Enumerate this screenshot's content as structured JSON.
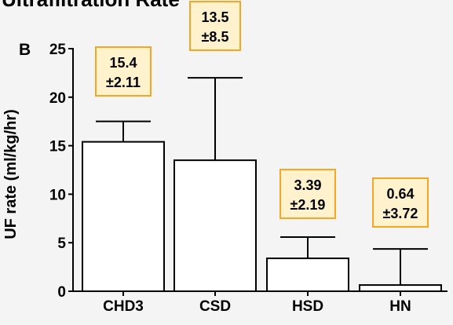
{
  "chart_data": {
    "type": "bar",
    "title": "Ultrafiltration Rate",
    "panel_label": "B",
    "ylabel": "UF rate (ml/kg/hr)",
    "xlabel": "",
    "categories": [
      "CHD3",
      "CSD",
      "HSD",
      "HN"
    ],
    "values": [
      15.4,
      13.5,
      3.39,
      0.64
    ],
    "error_upper": [
      2.11,
      8.5,
      2.19,
      3.72
    ],
    "annotations": [
      {
        "line1": "15.4",
        "line2": "±2.11"
      },
      {
        "line1": "13.5",
        "line2": "±8.5"
      },
      {
        "line1": "3.39",
        "line2": "±2.19"
      },
      {
        "line1": "0.64",
        "line2": "±3.72"
      }
    ],
    "ylim": [
      0,
      25
    ],
    "yticks": [
      0,
      5,
      10,
      15,
      20,
      25
    ],
    "grid": false,
    "colors": {
      "bar_fill": "#ffffff",
      "bar_stroke": "#000000",
      "annotation_fill": "#fff2cc",
      "annotation_border": "#f5a623",
      "background": "#f4f4f4"
    }
  }
}
